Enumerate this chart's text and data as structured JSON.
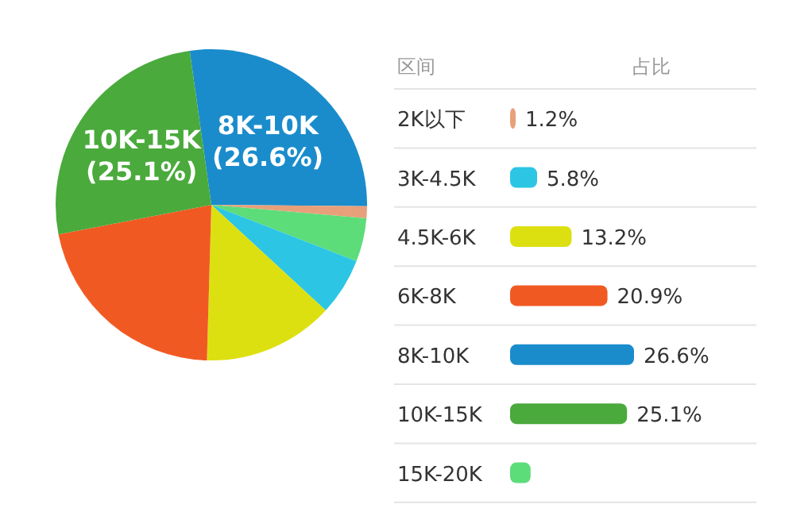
{
  "chart_data": [
    {
      "type": "pie",
      "categories": [
        "8K-10K",
        null,
        null,
        null,
        null,
        null,
        "10K-15K"
      ],
      "values": [
        26.6,
        1.2,
        4.4,
        5.8,
        13.2,
        20.9,
        25.1
      ],
      "value_labels": [
        "(26.6%)",
        null,
        null,
        null,
        null,
        null,
        "(25.1%)"
      ],
      "colors": [
        "#1a8ccc",
        "#e8a07a",
        "#5ddc7a",
        "#2cc6e4",
        "#dde010",
        "#f05a22",
        "#4aaa3c"
      ]
    },
    {
      "type": "bar",
      "orientation": "horizontal",
      "ylabel": "区间",
      "annotations": [
        "占比"
      ],
      "categories": [
        "2K以下",
        "3K-4.5K",
        "4.5K-6K",
        "6K-8K",
        "8K-10K",
        "10K-15K",
        "15K-20K"
      ],
      "values": [
        1.2,
        5.8,
        13.2,
        20.9,
        26.6,
        25.1,
        4.4
      ],
      "value_labels": [
        "1.2%",
        "5.8%",
        "13.2%",
        "20.9%",
        "26.6%",
        "25.1%",
        null
      ],
      "colors": [
        "#e8a07a",
        "#2cc6e4",
        "#dde010",
        "#f05a22",
        "#1a8ccc",
        "#4aaa3c",
        "#5ddc7a"
      ]
    }
  ]
}
